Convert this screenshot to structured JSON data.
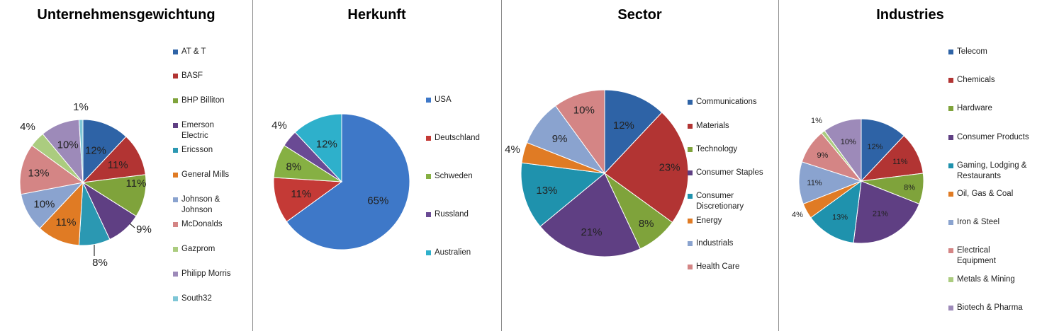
{
  "chart_data": [
    {
      "type": "pie",
      "title": "Unternehmensgewichtung",
      "categories": [
        "AT & T",
        "BASF",
        "BHP Billiton",
        "Emerson Electric",
        "Ericsson",
        "General Mills",
        "Johnson & Johnson",
        "McDonalds",
        "Gazprom",
        "Philipp Morris",
        "South32"
      ],
      "values": [
        12,
        11,
        11,
        9,
        8,
        11,
        10,
        13,
        4,
        10,
        1
      ],
      "data_labels": [
        "12%",
        "11%",
        "11%",
        "9%",
        "8%",
        "11%",
        "10%",
        "13%",
        "4%",
        "10%",
        "1%"
      ],
      "colors": [
        "#2e63a6",
        "#b23433",
        "#7fa33b",
        "#5f3f83",
        "#2b98b2",
        "#e07b24",
        "#8aa3cf",
        "#d48585",
        "#abcc7f",
        "#9d8ab9",
        "#7ec6d6"
      ],
      "legend_position": "right"
    },
    {
      "type": "pie",
      "title": "Herkunft",
      "categories": [
        "USA",
        "Deutschland",
        "Schweden",
        "Russland",
        "Australien"
      ],
      "values": [
        65,
        11,
        8,
        4,
        12
      ],
      "data_labels": [
        "65%",
        "11%",
        "8%",
        "4%",
        "12%"
      ],
      "colors": [
        "#3e78c8",
        "#c43a36",
        "#86b043",
        "#6a4a94",
        "#2eb0cb"
      ],
      "legend_position": "right"
    },
    {
      "type": "pie",
      "title": "Sector",
      "categories": [
        "Communications",
        "Materials",
        "Technology",
        "Consumer Staples",
        "Consumer Discretionary",
        "Energy",
        "Industrials",
        "Health Care"
      ],
      "values": [
        12,
        23,
        8,
        21,
        13,
        4,
        9,
        10
      ],
      "data_labels": [
        "12%",
        "23%",
        "8%",
        "21%",
        "13%",
        "4%",
        "9%",
        "10%"
      ],
      "colors": [
        "#2e63a6",
        "#b23433",
        "#7fa33b",
        "#5f3f83",
        "#1f92ad",
        "#e07b24",
        "#8aa3cf",
        "#d48585"
      ],
      "legend_position": "right"
    },
    {
      "type": "pie",
      "title": "Industries",
      "categories": [
        "Telecom",
        "Chemicals",
        "Hardware",
        "Consumer Products",
        "Gaming, Lodging & Restaurants",
        "Oil, Gas & Coal",
        "Iron & Steel",
        "Electrical Equipment",
        "Metals & Mining",
        "Biotech & Pharma"
      ],
      "values": [
        12,
        11,
        8,
        21,
        13,
        4,
        11,
        9,
        1,
        10
      ],
      "data_labels": [
        "12%",
        "11%",
        "8%",
        "21%",
        "13%",
        "4%",
        "11%",
        "9%",
        "1%",
        "10%"
      ],
      "colors": [
        "#2e63a6",
        "#b23433",
        "#7fa33b",
        "#5f3f83",
        "#1f92ad",
        "#e07b24",
        "#8aa3cf",
        "#d48585",
        "#abcc7f",
        "#9d8ab9"
      ],
      "legend_position": "right"
    }
  ]
}
